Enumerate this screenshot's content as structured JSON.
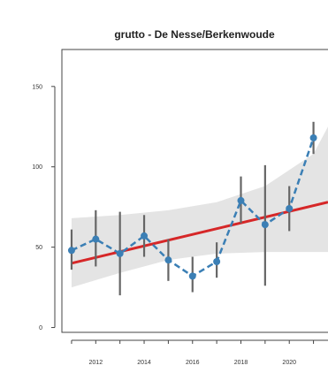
{
  "chart_data": {
    "type": "line",
    "title": "grutto - De Nesse/Berkenwoude",
    "xlabel": "",
    "ylabel": "",
    "xlim": [
      2010.6,
      2021.6
    ],
    "ylim": [
      -3,
      173
    ],
    "x_ticks": [
      2012,
      2014,
      2016,
      2018,
      2020
    ],
    "x_tick_labels": [
      "2012",
      "2014",
      "2016",
      "2018",
      "2020"
    ],
    "y_ticks": [
      0,
      50,
      100,
      150
    ],
    "y_tick_labels": [
      "0",
      "50",
      "100",
      "150"
    ],
    "grid": false,
    "legend": "none",
    "colors": {
      "observed": "#3b7fb5",
      "trend": "#d62728",
      "band": "#e4e4e4",
      "errorbar": "#666666",
      "frame": "#444444"
    },
    "series": [
      {
        "kind": "observed",
        "style": "dashed-with-points",
        "x": [
          2011,
          2012,
          2013,
          2014,
          2015,
          2016,
          2017,
          2018,
          2019,
          2020,
          2021
        ],
        "y": [
          48,
          55,
          46,
          57,
          42,
          32,
          41,
          79,
          64,
          74,
          118
        ],
        "y_low": [
          36,
          38,
          20,
          44,
          29,
          22,
          31,
          65,
          26,
          60,
          108
        ],
        "y_high": [
          61,
          73,
          72,
          70,
          55,
          44,
          53,
          94,
          101,
          88,
          128
        ]
      },
      {
        "kind": "trend",
        "style": "solid",
        "x": [
          2011,
          2021.6
        ],
        "y": [
          40,
          78
        ]
      },
      {
        "kind": "confidence-band",
        "x": [
          2011,
          2013,
          2015,
          2017,
          2019,
          2021,
          2021.6
        ],
        "upper": [
          68,
          70,
          73,
          78,
          88,
          108,
          125
        ],
        "lower": [
          25,
          34,
          42,
          46,
          47,
          47,
          47
        ]
      }
    ]
  }
}
